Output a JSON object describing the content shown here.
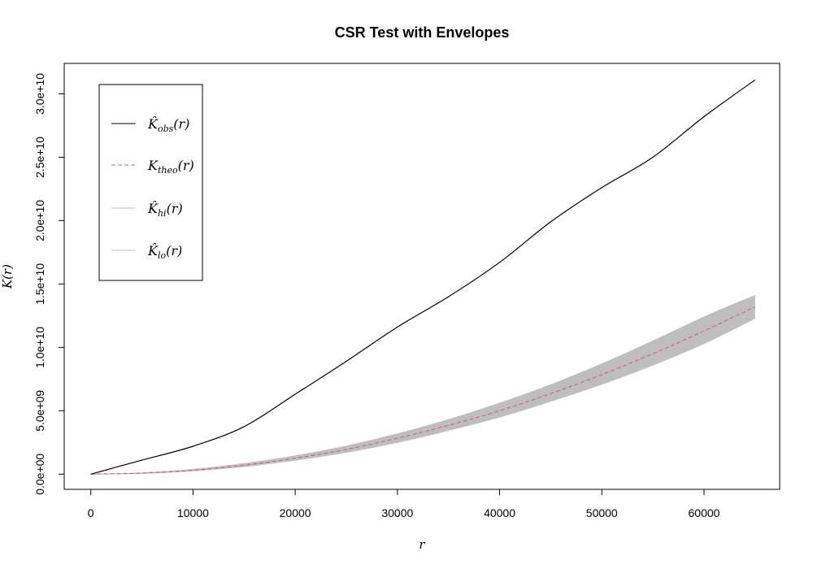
{
  "chart_data": {
    "type": "line",
    "title": "CSR Test with Envelopes",
    "xlabel": "r",
    "ylabel": "K(r)",
    "xlim": [
      -2600,
      67400
    ],
    "ylim": [
      -1200000000.0,
      32400000000.0
    ],
    "x_ticks": [
      0,
      10000,
      20000,
      30000,
      40000,
      50000,
      60000
    ],
    "x_tick_labels": [
      "0",
      "10000",
      "20000",
      "30000",
      "40000",
      "50000",
      "60000"
    ],
    "y_ticks": [
      0,
      5000000000,
      10000000000,
      15000000000,
      20000000000,
      25000000000,
      30000000000
    ],
    "y_tick_labels": [
      "0.0e+00",
      "5.0e+09",
      "1.0e+10",
      "1.5e+10",
      "2.0e+10",
      "2.5e+10",
      "3.0e+10"
    ],
    "x": [
      0,
      5000,
      10000,
      15000,
      20000,
      25000,
      30000,
      35000,
      40000,
      45000,
      50000,
      55000,
      60000,
      65000
    ],
    "series": [
      {
        "key": "obs",
        "color": "#000000",
        "dash": "solid",
        "values": [
          0.0,
          1100000000.0,
          2200000000.0,
          3750000000.0,
          6300000000.0,
          8900000000.0,
          11600000000.0,
          14000000000.0,
          16700000000.0,
          19900000000.0,
          22600000000.0,
          25000000000.0,
          28200000000.0,
          31100000000.0
        ]
      },
      {
        "key": "theo",
        "color": "#df536b",
        "dash": "dashed",
        "values": [
          0.0,
          80000000.0,
          310000000.0,
          700000000.0,
          1260000000.0,
          1950000000.0,
          2830000000.0,
          3850000000.0,
          5000000000.0,
          6350000000.0,
          7850000000.0,
          9500000000.0,
          11300000000.0,
          13200000000.0
        ]
      },
      {
        "key": "hi",
        "color": "#bebebe",
        "dash": "solid",
        "values": [
          0.0,
          100000000.0,
          370000000.0,
          830000000.0,
          1440000000.0,
          2220000000.0,
          3180000000.0,
          4300000000.0,
          5600000000.0,
          7050000000.0,
          8700000000.0,
          10500000000.0,
          12400000000.0,
          14100000000.0
        ]
      },
      {
        "key": "lo",
        "color": "#bebebe",
        "dash": "solid",
        "values": [
          0.0,
          60000000.0,
          260000000.0,
          600000000.0,
          1100000000.0,
          1720000000.0,
          2500000000.0,
          3450000000.0,
          4500000000.0,
          5750000000.0,
          7100000000.0,
          8600000000.0,
          10300000000.0,
          12300000000.0
        ]
      }
    ],
    "legend": {
      "position": "top-left",
      "entries": [
        {
          "series": "obs",
          "text": "K̂",
          "sub": "obs",
          "suffix": "(r)"
        },
        {
          "series": "theo",
          "text": "K",
          "sub": "theo",
          "suffix": "(r)"
        },
        {
          "series": "hi",
          "text": "K̂",
          "sub": "hi",
          "suffix": "(r)"
        },
        {
          "series": "lo",
          "text": "K̂",
          "sub": "lo",
          "suffix": "(r)"
        }
      ]
    },
    "grid": false
  }
}
